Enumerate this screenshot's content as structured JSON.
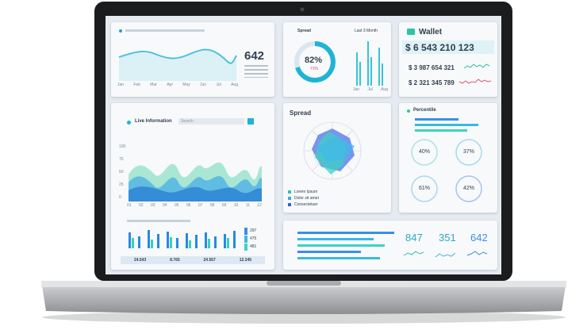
{
  "trend": {
    "value": "642",
    "months": [
      "Jan",
      "Feb",
      "Mar",
      "Apr",
      "May",
      "Jun",
      "Jul",
      "Aug"
    ]
  },
  "spread_small": {
    "title": "Spread",
    "period": "Last 3 Month",
    "percent": "82%",
    "change": "71%",
    "bar_labels": [
      "Jan",
      "Jul",
      "Aug"
    ]
  },
  "wallet": {
    "title": "Wallet",
    "total": "$ 6 543 210 123",
    "up": "$ 3 987 654 321",
    "down": "$ 2 321 345 789"
  },
  "live": {
    "title": "Live Information",
    "search": "Search",
    "y_labels": [
      "100",
      "75",
      "50",
      "25",
      "0"
    ],
    "x_labels": [
      "01",
      "02",
      "03",
      "04",
      "05",
      "06",
      "07",
      "08",
      "09",
      "10",
      "11",
      "12"
    ],
    "legend": [
      "297",
      "475",
      "481"
    ],
    "totals": [
      "24.543",
      "8.765",
      "24.567",
      "12.345"
    ]
  },
  "spread": {
    "title": "Spread",
    "legend": [
      "Lorem Ipsum",
      "Dolor sit amet",
      "Consectetuer"
    ]
  },
  "percentile": {
    "title": "Percentile",
    "rings": [
      "40%",
      "37%",
      "61%",
      "42%"
    ]
  },
  "stats": {
    "values": [
      "847",
      "351",
      "642"
    ]
  }
}
